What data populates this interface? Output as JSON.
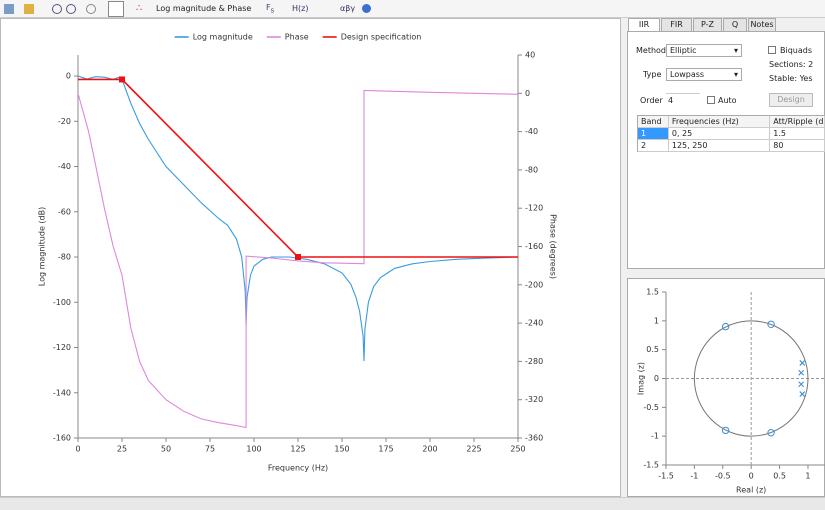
{
  "toolbar": {
    "view": "Log magnitude & Phase",
    "fs": "F",
    "fs_sub": "s",
    "transfer": "H(z)",
    "symbols": "αβγ"
  },
  "chart_data": [
    {
      "type": "line",
      "xlabel": "Frequency (Hz)",
      "ylabel": "Log magnitude (dB)",
      "y2label": "Phase (degrees)",
      "xlim": [
        0,
        250
      ],
      "xticks": [
        0,
        25,
        50,
        75,
        100,
        125,
        150,
        175,
        200,
        225,
        250
      ],
      "ylim": [
        -160,
        9.3
      ],
      "yticks": [
        0,
        -20,
        -40,
        -60,
        -80,
        -100,
        -120,
        -140,
        -160
      ],
      "y2lim": [
        -360,
        40
      ],
      "y2ticks": [
        40,
        0,
        -40,
        -80,
        -120,
        -160,
        -200,
        -240,
        -280,
        -320,
        -360
      ],
      "series": [
        {
          "name": "Log magnitude",
          "color": "#3b9be0",
          "x": [
            0,
            5,
            10,
            15,
            20,
            23,
            25,
            30,
            35,
            40,
            50,
            60,
            70,
            80,
            85,
            90,
            93,
            95,
            95.5,
            96,
            98,
            100,
            105,
            110,
            120,
            130,
            140,
            150,
            155,
            158,
            160,
            162,
            162.5,
            163,
            165,
            168,
            172,
            180,
            190,
            200,
            215,
            230,
            250
          ],
          "values": [
            0,
            -1.3,
            -0.3,
            -0.5,
            -1.5,
            -0.6,
            -1.5,
            -12,
            -21,
            -28,
            -40,
            -48,
            -56,
            -63,
            -66,
            -72,
            -80,
            -95,
            -110,
            -98,
            -88,
            -84,
            -81,
            -80,
            -80,
            -81,
            -83,
            -87,
            -92,
            -98,
            -104,
            -115,
            -126,
            -112,
            -100,
            -93,
            -89,
            -85,
            -83,
            -82,
            -81,
            -80.5,
            -80
          ]
        },
        {
          "name": "Phase",
          "color": "#dd88dd",
          "axis": "y2",
          "x": [
            0,
            3,
            6,
            10,
            15,
            20,
            25,
            30,
            35,
            40,
            50,
            60,
            70,
            80,
            90,
            95.5,
            95.5,
            110,
            125,
            140,
            162.5,
            162.5,
            200,
            250
          ],
          "values": [
            0,
            -20,
            -40,
            -75,
            -120,
            -160,
            -190,
            -245,
            -280,
            -300,
            -320,
            -332,
            -340,
            -344,
            -347,
            -349,
            -170,
            -172,
            -175,
            -177,
            -178,
            3,
            1,
            -1
          ]
        },
        {
          "name": "Design specification",
          "color": "#ee1111",
          "x": [
            0,
            25,
            125,
            250
          ],
          "values": [
            -1.5,
            -1.5,
            -80,
            -80
          ]
        }
      ]
    },
    {
      "type": "pole-zero",
      "xlabel": "Real (z)",
      "ylabel": "Imag (z)",
      "xlim": [
        -1.5,
        1.3
      ],
      "xticks": [
        -1.5,
        -1,
        -0.5,
        0,
        0.5,
        1
      ],
      "ylim": [
        -1.5,
        1.5
      ],
      "yticks": [
        1.5,
        1,
        0.5,
        0,
        -0.5,
        -1,
        -1.5
      ],
      "zeros": {
        "color": "#3b8fd9",
        "x": [
          -0.45,
          0.35,
          -0.45,
          0.35
        ],
        "y": [
          0.9,
          0.94,
          -0.9,
          -0.94
        ]
      },
      "poles": {
        "color": "#3b8fd9",
        "x": [
          0.9,
          0.88,
          0.88,
          0.9
        ],
        "y": [
          0.27,
          0.1,
          -0.1,
          -0.27
        ]
      }
    }
  ],
  "tabs": [
    "IIR",
    "FIR",
    "P-Z",
    "Q",
    "Notes"
  ],
  "form": {
    "method_label": "Method",
    "method": "Elliptic",
    "biquads": "Biquads",
    "sections": "Sections: 2",
    "type_label": "Type",
    "type": "Lowpass",
    "stable": "Stable: Yes",
    "order_label": "Order",
    "order": "4",
    "auto": "Auto",
    "design": "Design"
  },
  "table": {
    "headers": [
      "Band",
      "Frequencies (Hz)",
      "Att/Ripple (dB)"
    ],
    "rows": [
      [
        "1",
        "0, 25",
        "1.5"
      ],
      [
        "2",
        "125, 250",
        "80"
      ]
    ]
  }
}
